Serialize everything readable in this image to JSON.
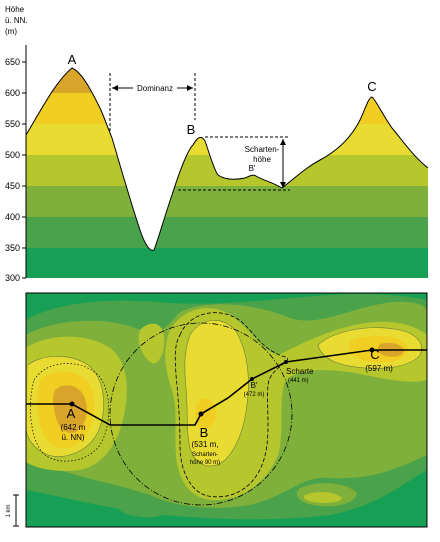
{
  "colors": {
    "band_300_350": "#17a055",
    "band_350_400": "#4aa24a",
    "band_400_450": "#7fb03c",
    "band_450_500": "#b6c72e",
    "band_500_550": "#e8dc32",
    "band_550_600": "#f1cf22",
    "band_600_650": "#d8a52a",
    "line": "#000000"
  },
  "profile": {
    "axis_title_line1": "Höhe",
    "axis_title_line2": "ü. NN.",
    "axis_title_line3": "(m)",
    "ticks": [
      "650",
      "600",
      "550",
      "500",
      "450",
      "400",
      "350",
      "300"
    ],
    "peak_a": "A",
    "peak_b": "B",
    "peak_b_prime": "B'",
    "peak_c": "C",
    "dominanz": "Dominanz",
    "schartenhoehe_line1": "Scharten-",
    "schartenhoehe_line2": "höhe"
  },
  "map": {
    "point_a": "A",
    "point_a_elev": "(642 m",
    "point_a_ref": "ü. NN)",
    "point_b": "B",
    "point_b_elev": "(531 m,",
    "point_b_sub1": "Scharten-",
    "point_b_sub2": "höhe 90 m)",
    "point_b_prime": "B'",
    "point_b_prime_elev": "(472 m)",
    "scharte": "Scharte",
    "scharte_elev": "(441 m)",
    "point_c": "C",
    "point_c_elev": "(597 m)",
    "scale": "1 km"
  }
}
